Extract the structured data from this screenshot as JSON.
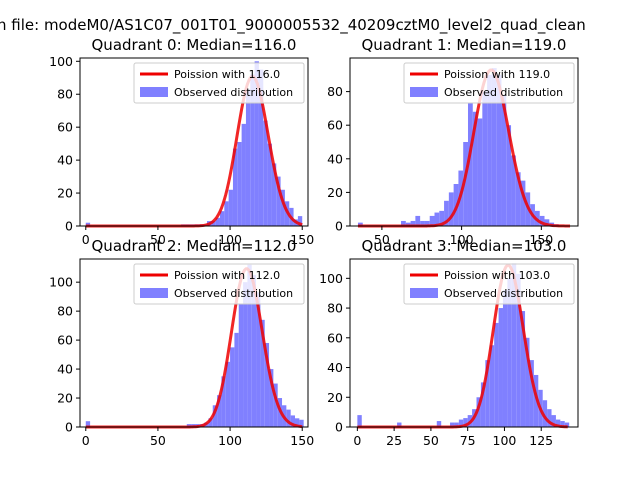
{
  "figure": {
    "suptitle": "n file: modeM0/AS1C07_001T01_9000005532_40209cztM0_level2_quad_clean"
  },
  "colors": {
    "poisson_line": "#ee0000",
    "histogram": "#8080ff",
    "axes": "#000000"
  },
  "chart_data": [
    {
      "type": "bar",
      "title": "Quadrant 0: Median=116.0",
      "xlim": [
        -4,
        154
      ],
      "ylim": [
        0,
        102
      ],
      "xticks": [
        0,
        50,
        100,
        150
      ],
      "yticks": [
        0,
        20,
        40,
        60,
        80,
        100
      ],
      "legend_placement": "top-right",
      "bin_width": 3,
      "histogram": {
        "name": "Observed distribution",
        "x": [
          0,
          66,
          69,
          72,
          75,
          78,
          81,
          84,
          87,
          90,
          93,
          96,
          99,
          102,
          105,
          108,
          111,
          114,
          117,
          120,
          123,
          126,
          129,
          132,
          135,
          138,
          141,
          144,
          147
        ],
        "values": [
          2,
          1,
          1,
          1,
          1,
          1,
          1,
          3,
          3,
          5,
          9,
          15,
          22,
          47,
          51,
          62,
          83,
          92,
          100,
          95,
          64,
          50,
          38,
          30,
          22,
          15,
          11,
          4,
          6
        ]
      },
      "poisson": {
        "name": "Poission with 116.0",
        "mean": 116.0,
        "scale": 2450,
        "x_range": [
          0,
          150
        ]
      }
    },
    {
      "type": "bar",
      "title": "Quadrant 1: Median=119.0",
      "xlim": [
        30,
        173
      ],
      "ylim": [
        0,
        100
      ],
      "xticks": [
        50,
        100,
        150
      ],
      "yticks": [
        0,
        20,
        40,
        60,
        80
      ],
      "legend_placement": "top-right",
      "bin_width": 3,
      "histogram": {
        "name": "Observed distribution",
        "x": [
          35,
          62,
          65,
          68,
          71,
          74,
          77,
          80,
          83,
          86,
          89,
          92,
          95,
          98,
          101,
          104,
          107,
          110,
          113,
          116,
          119,
          122,
          125,
          128,
          131,
          134,
          137,
          140,
          143,
          146,
          149,
          152,
          155,
          158
        ],
        "values": [
          2,
          3,
          2,
          3,
          6,
          3,
          3,
          6,
          8,
          9,
          15,
          20,
          25,
          33,
          50,
          73,
          68,
          64,
          80,
          90,
          94,
          90,
          78,
          60,
          42,
          32,
          27,
          20,
          13,
          9,
          6,
          4,
          2,
          1
        ]
      },
      "poisson": {
        "name": "Poission with 119.0",
        "mean": 119.0,
        "scale": 2540,
        "x_range": [
          35,
          168
        ]
      }
    },
    {
      "type": "bar",
      "title": "Quadrant 2: Median=112.0",
      "xlim": [
        -4,
        154
      ],
      "ylim": [
        0,
        116
      ],
      "xticks": [
        0,
        50,
        100,
        150
      ],
      "yticks": [
        0,
        20,
        40,
        60,
        80,
        100
      ],
      "legend_placement": "top-right",
      "bin_width": 3,
      "histogram": {
        "name": "Observed distribution",
        "x": [
          0,
          70,
          73,
          76,
          79,
          82,
          85,
          88,
          91,
          94,
          97,
          100,
          103,
          106,
          109,
          112,
          115,
          118,
          121,
          124,
          127,
          130,
          133,
          136,
          139,
          142,
          145,
          148
        ],
        "values": [
          4,
          2,
          2,
          2,
          2,
          3,
          6,
          15,
          22,
          35,
          45,
          55,
          65,
          85,
          100,
          112,
          105,
          93,
          74,
          58,
          40,
          30,
          20,
          15,
          12,
          8,
          6,
          5
        ]
      },
      "poisson": {
        "name": "Poission with 112.0",
        "mean": 112.0,
        "scale": 2900,
        "x_range": [
          0,
          150
        ]
      }
    },
    {
      "type": "bar",
      "title": "Quadrant 3: Median=103.0",
      "xlim": [
        -5,
        150
      ],
      "ylim": [
        0,
        113
      ],
      "xticks": [
        0,
        25,
        50,
        75,
        100,
        125
      ],
      "yticks": [
        0,
        20,
        40,
        60,
        80,
        100
      ],
      "legend_placement": "top-right",
      "bin_width": 3,
      "histogram": {
        "name": "Observed distribution",
        "x": [
          0,
          27,
          54,
          63,
          66,
          69,
          72,
          75,
          78,
          81,
          84,
          87,
          90,
          93,
          96,
          99,
          102,
          105,
          108,
          111,
          114,
          117,
          120,
          123,
          126,
          129,
          132,
          135,
          138,
          141
        ],
        "values": [
          8,
          3,
          4,
          3,
          3,
          5,
          6,
          8,
          12,
          20,
          30,
          45,
          55,
          70,
          80,
          92,
          100,
          110,
          103,
          78,
          60,
          45,
          35,
          25,
          18,
          12,
          8,
          5,
          4,
          3
        ]
      },
      "poisson": {
        "name": "Poission with 103.0",
        "mean": 103.0,
        "scale": 2770,
        "x_range": [
          0,
          143
        ]
      }
    }
  ]
}
